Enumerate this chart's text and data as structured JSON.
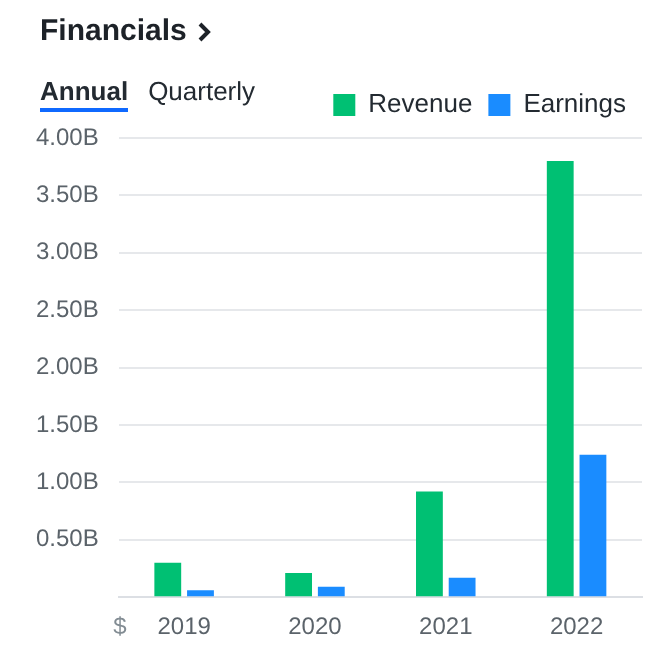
{
  "chart_data": {
    "type": "bar",
    "title": "Financials",
    "annotations": [
      "Annual",
      "Quarterly",
      "$"
    ],
    "categories": [
      "2019",
      "2020",
      "2021",
      "2022"
    ],
    "series": [
      {
        "name": "Revenue",
        "color": "#00c073",
        "values": [
          0.3,
          0.21,
          0.92,
          3.8
        ]
      },
      {
        "name": "Earnings",
        "color": "#1a8cff",
        "values": [
          0.06,
          0.09,
          0.17,
          1.24
        ]
      }
    ],
    "ylim": [
      0,
      4
    ],
    "yticks": [
      {
        "value": 0,
        "label": null
      },
      {
        "value": 0.5,
        "label": "0.50B"
      },
      {
        "value": 1,
        "label": "1.00B"
      },
      {
        "value": 1.5,
        "label": "1.50B"
      },
      {
        "value": 2,
        "label": "2.00B"
      },
      {
        "value": 2.5,
        "label": "2.50B"
      },
      {
        "value": 3,
        "label": "3.00B"
      },
      {
        "value": 3.5,
        "label": "3.50B"
      },
      {
        "value": 4,
        "label": "4.00B"
      }
    ],
    "grid": "y",
    "legend": "top right"
  }
}
